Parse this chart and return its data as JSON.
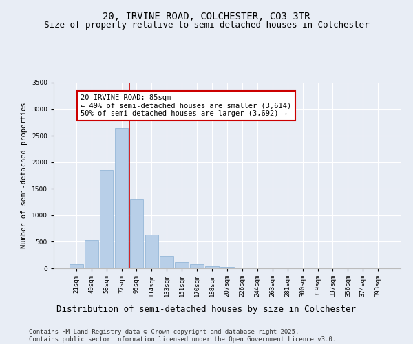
{
  "title": "20, IRVINE ROAD, COLCHESTER, CO3 3TR",
  "subtitle": "Size of property relative to semi-detached houses in Colchester",
  "xlabel": "Distribution of semi-detached houses by size in Colchester",
  "ylabel": "Number of semi-detached properties",
  "categories": [
    "21sqm",
    "40sqm",
    "58sqm",
    "77sqm",
    "95sqm",
    "114sqm",
    "133sqm",
    "151sqm",
    "170sqm",
    "188sqm",
    "207sqm",
    "226sqm",
    "244sqm",
    "263sqm",
    "281sqm",
    "300sqm",
    "319sqm",
    "337sqm",
    "356sqm",
    "374sqm",
    "393sqm"
  ],
  "values": [
    75,
    530,
    1850,
    2650,
    1310,
    635,
    235,
    120,
    75,
    45,
    20,
    10,
    5,
    3,
    2,
    1,
    1,
    0,
    0,
    0,
    0
  ],
  "bar_color": "#b8cfe8",
  "bar_edge_color": "#8ab0d4",
  "vline_color": "#cc0000",
  "vline_index": 3.5,
  "annotation_text": "20 IRVINE ROAD: 85sqm\n← 49% of semi-detached houses are smaller (3,614)\n50% of semi-detached houses are larger (3,692) →",
  "annotation_box_color": "#ffffff",
  "annotation_border_color": "#cc0000",
  "ylim": [
    0,
    3500
  ],
  "yticks": [
    0,
    500,
    1000,
    1500,
    2000,
    2500,
    3000,
    3500
  ],
  "background_color": "#e8edf5",
  "plot_background_color": "#e8edf5",
  "footer": "Contains HM Land Registry data © Crown copyright and database right 2025.\nContains public sector information licensed under the Open Government Licence v3.0.",
  "title_fontsize": 10,
  "subtitle_fontsize": 9,
  "xlabel_fontsize": 9,
  "ylabel_fontsize": 7.5,
  "tick_fontsize": 6.5,
  "annotation_fontsize": 7.5,
  "footer_fontsize": 6.5
}
